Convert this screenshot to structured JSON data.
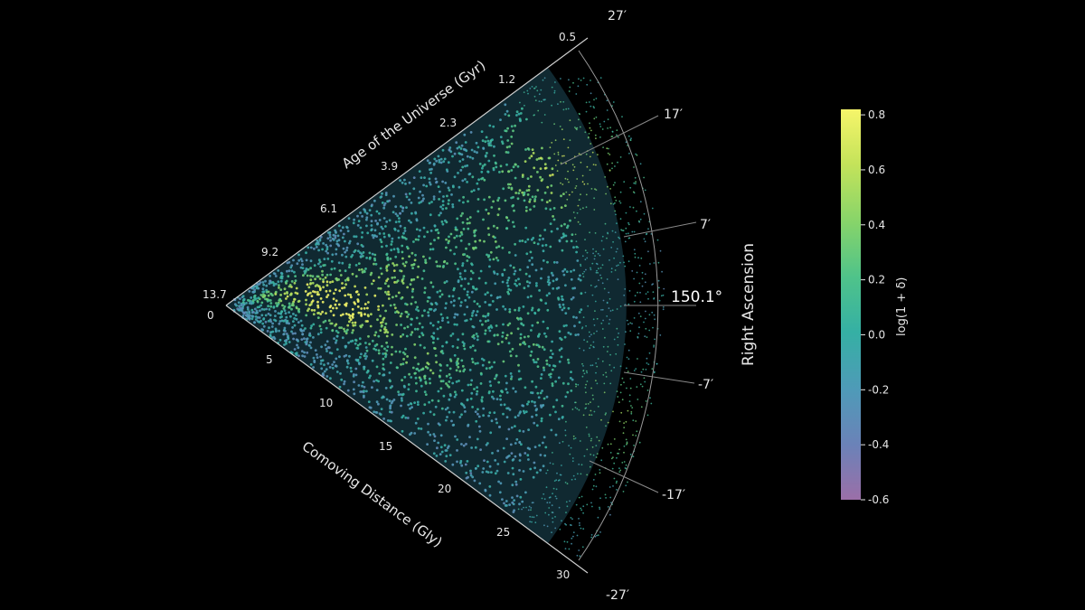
{
  "chart_data": {
    "type": "scatter",
    "title": "",
    "colormap": "viridis",
    "apex_label": "13.7",
    "origin_label": "0",
    "age_axis": {
      "label": "Age of the Universe (Gyr)",
      "ticks": [
        {
          "value": "0.5",
          "distance": 30
        },
        {
          "value": "1.2",
          "distance": 25
        },
        {
          "value": "2.3",
          "distance": 20
        },
        {
          "value": "3.9",
          "distance": 15
        },
        {
          "value": "6.1",
          "distance": 10
        },
        {
          "value": "9.2",
          "distance": 5
        }
      ]
    },
    "distance_axis": {
      "label": "Comoving Distance (Gly)",
      "ticks": [
        "5",
        "10",
        "15",
        "20",
        "25",
        "30"
      ],
      "range": [
        0,
        30
      ]
    },
    "ra_axis": {
      "label": "Right Ascension",
      "center_label": "150.1°",
      "ticks": [
        {
          "label": "27′",
          "offset_arcmin": 27
        },
        {
          "label": "17′",
          "offset_arcmin": 17
        },
        {
          "label": "7′",
          "offset_arcmin": 7
        },
        {
          "label": "-7′",
          "offset_arcmin": -7
        },
        {
          "label": "-17′",
          "offset_arcmin": -17
        },
        {
          "label": "-27′",
          "offset_arcmin": -27
        }
      ],
      "range_arcmin": [
        -27,
        27
      ]
    },
    "colorbar": {
      "label": "log(1 + δ)",
      "range": [
        -0.6,
        0.82
      ],
      "ticks": [
        "0.8",
        "0.6",
        "0.4",
        "0.2",
        "0.0",
        "-0.2",
        "-0.4",
        "-0.6"
      ],
      "tick_values": [
        0.8,
        0.6,
        0.4,
        0.2,
        0.0,
        -0.2,
        -0.4,
        -0.6
      ],
      "colors": [
        "#9b6fa8",
        "#6b82b8",
        "#4f9ab8",
        "#35b0a4",
        "#4fc38a",
        "#86d46a",
        "#c4e35a",
        "#f6f56a"
      ]
    },
    "density_features": [
      {
        "distance": 7,
        "offset_arcmin": 2,
        "value": 0.8
      },
      {
        "distance": 5,
        "offset_arcmin": 10,
        "value": 0.7
      },
      {
        "distance": 9,
        "offset_arcmin": -4,
        "value": 0.65
      },
      {
        "distance": 12,
        "offset_arcmin": 8,
        "value": 0.55
      },
      {
        "distance": 14,
        "offset_arcmin": -12,
        "value": 0.5
      },
      {
        "distance": 18,
        "offset_arcmin": 12,
        "value": 0.45
      },
      {
        "distance": 20,
        "offset_arcmin": -5,
        "value": 0.4
      },
      {
        "distance": 23,
        "offset_arcmin": 18,
        "value": 0.45
      },
      {
        "distance": 26,
        "offset_arcmin": 15,
        "value": 0.5
      },
      {
        "distance": 27,
        "offset_arcmin": -12,
        "value": 0.45
      }
    ],
    "grid": false
  }
}
